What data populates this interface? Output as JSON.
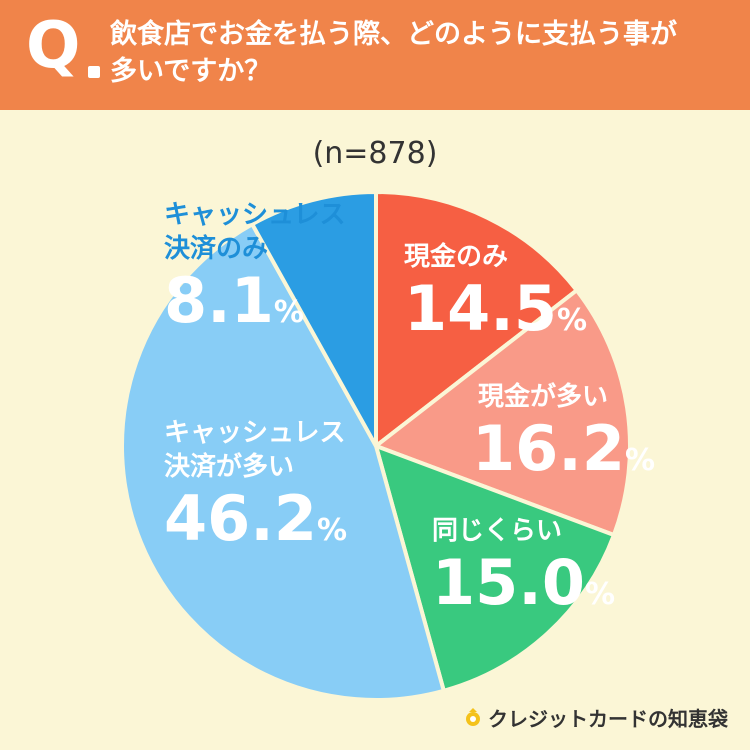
{
  "question": {
    "mark": "Q",
    "line1": "飲食店でお金を払う際、どのように支払う事が",
    "line2": "多いですか？"
  },
  "sample_size": "(n=878)",
  "brand": "クレジットカードの知恵袋",
  "chart_data": {
    "type": "pie",
    "title": "",
    "slices": [
      {
        "label": "現金のみ",
        "value": 14.5,
        "color": "#f65f43"
      },
      {
        "label": "現金が多い",
        "value": 16.2,
        "color": "#f99a88"
      },
      {
        "label": "同じくらい",
        "value": 15.0,
        "color": "#39c97f"
      },
      {
        "label": "キャッシュレス決済が多い",
        "value": 46.2,
        "color": "#88cdf6"
      },
      {
        "label": "キャッシュレス決済のみ",
        "value": 8.1,
        "color": "#2b9de3"
      }
    ],
    "unit": "%"
  },
  "labels": {
    "s0": {
      "name1": "現金のみ",
      "num": "14.5",
      "unit": "%"
    },
    "s1": {
      "name1": "現金が多い",
      "num": "16.2",
      "unit": "%"
    },
    "s2": {
      "name1": "同じくらい",
      "num": "15.0",
      "unit": "%"
    },
    "s3": {
      "name1": "キャッシュレス",
      "name2": "決済が多い",
      "num": "46.2",
      "unit": "%"
    },
    "s4": {
      "name1": "キャッシュレス",
      "name2": "決済のみ",
      "num": "8.1",
      "unit": "%"
    }
  }
}
